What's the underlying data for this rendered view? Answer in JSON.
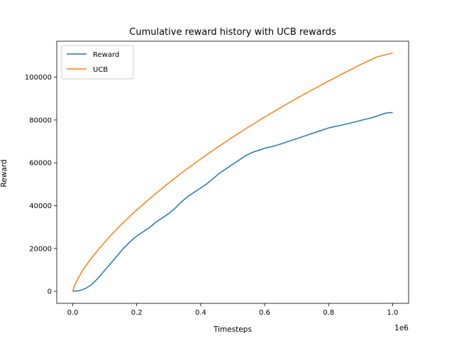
{
  "chart_data": {
    "type": "line",
    "title": "Cumulative reward history with UCB rewards",
    "xlabel": "Timesteps",
    "ylabel": "Reward",
    "x_offset_label": "1e6",
    "xlim": [
      -0.05,
      1.05
    ],
    "ylim": [
      -5600,
      116800
    ],
    "x_ticks": [
      0.0,
      0.2,
      0.4,
      0.6,
      0.8,
      1.0
    ],
    "x_tick_labels": [
      "0.0",
      "0.2",
      "0.4",
      "0.6",
      "0.8",
      "1.0"
    ],
    "y_ticks": [
      0,
      20000,
      40000,
      60000,
      80000,
      100000
    ],
    "y_tick_labels": [
      "0",
      "20000",
      "40000",
      "60000",
      "80000",
      "100000"
    ],
    "grid": false,
    "legend_position": "top-left",
    "series": [
      {
        "name": "Reward",
        "color": "#1f77b4",
        "x": [
          0.0,
          0.02,
          0.04,
          0.06,
          0.08,
          0.1,
          0.12,
          0.14,
          0.16,
          0.18,
          0.2,
          0.22,
          0.24,
          0.26,
          0.28,
          0.3,
          0.32,
          0.34,
          0.36,
          0.38,
          0.4,
          0.42,
          0.44,
          0.46,
          0.48,
          0.5,
          0.52,
          0.54,
          0.56,
          0.58,
          0.6,
          0.62,
          0.64,
          0.66,
          0.68,
          0.7,
          0.72,
          0.74,
          0.76,
          0.78,
          0.8,
          0.82,
          0.84,
          0.86,
          0.88,
          0.9,
          0.92,
          0.94,
          0.96,
          0.98,
          1.0
        ],
        "values": [
          0,
          300,
          1300,
          3300,
          6300,
          9800,
          13300,
          16800,
          20300,
          23300,
          25800,
          27800,
          29800,
          32300,
          34300,
          36300,
          38800,
          41800,
          44300,
          46300,
          48300,
          50300,
          52800,
          55300,
          57300,
          59300,
          61300,
          63300,
          64800,
          65800,
          66800,
          67500,
          68300,
          69300,
          70300,
          71300,
          72300,
          73300,
          74300,
          75300,
          76300,
          77000,
          77600,
          78300,
          79000,
          79800,
          80500,
          81300,
          82300,
          83300,
          83500
        ]
      },
      {
        "name": "UCB",
        "color": "#ff7f0e",
        "x": [
          0.0,
          0.005,
          0.01,
          0.02,
          0.03,
          0.04,
          0.06,
          0.08,
          0.1,
          0.12,
          0.14,
          0.16,
          0.18,
          0.2,
          0.25,
          0.3,
          0.35,
          0.4,
          0.45,
          0.5,
          0.55,
          0.6,
          0.65,
          0.7,
          0.75,
          0.8,
          0.85,
          0.9,
          0.95,
          1.0
        ],
        "values": [
          0,
          2500,
          4200,
          7000,
          9500,
          11700,
          15800,
          19500,
          23000,
          26300,
          29400,
          32400,
          35200,
          38000,
          44500,
          50600,
          56400,
          61800,
          67000,
          72000,
          76800,
          81400,
          85800,
          90100,
          94200,
          98200,
          102100,
          105900,
          109400,
          111300
        ]
      }
    ]
  }
}
